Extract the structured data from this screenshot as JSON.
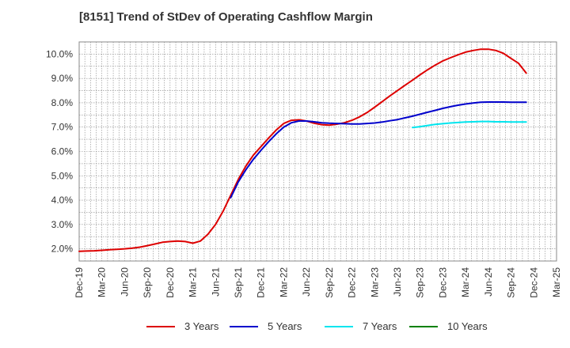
{
  "title": "[8151]  Trend of StDev of Operating Cashflow Margin",
  "chart_data": {
    "type": "line",
    "title": "[8151]  Trend of StDev of Operating Cashflow Margin",
    "xlabel": "",
    "ylabel": "",
    "x_ticks": [
      "Dec-19",
      "Mar-20",
      "Jun-20",
      "Sep-20",
      "Dec-20",
      "Mar-21",
      "Jun-21",
      "Sep-21",
      "Dec-21",
      "Mar-22",
      "Jun-22",
      "Sep-22",
      "Dec-22",
      "Mar-23",
      "Jun-23",
      "Sep-23",
      "Dec-23",
      "Mar-24",
      "Jun-24",
      "Sep-24",
      "Dec-24",
      "Mar-25"
    ],
    "y_ticks": [
      "2.0%",
      "3.0%",
      "4.0%",
      "5.0%",
      "6.0%",
      "7.0%",
      "8.0%",
      "9.0%",
      "10.0%"
    ],
    "ylim": [
      1.5,
      10.5
    ],
    "grid": true,
    "legend_position": "bottom",
    "series": [
      {
        "name": "3 Years",
        "color": "#dd0000",
        "points": [
          [
            "Dec-19",
            1.9
          ],
          [
            "Jan-20",
            1.91
          ],
          [
            "Feb-20",
            1.92
          ],
          [
            "Mar-20",
            1.94
          ],
          [
            "Apr-20",
            1.96
          ],
          [
            "May-20",
            1.98
          ],
          [
            "Jun-20",
            2.0
          ],
          [
            "Jul-20",
            2.03
          ],
          [
            "Aug-20",
            2.07
          ],
          [
            "Sep-20",
            2.13
          ],
          [
            "Oct-20",
            2.2
          ],
          [
            "Nov-20",
            2.27
          ],
          [
            "Dec-20",
            2.3
          ],
          [
            "Jan-21",
            2.32
          ],
          [
            "Feb-21",
            2.3
          ],
          [
            "Mar-21",
            2.23
          ],
          [
            "Apr-21",
            2.32
          ],
          [
            "May-21",
            2.6
          ],
          [
            "Jun-21",
            3.0
          ],
          [
            "Jul-21",
            3.55
          ],
          [
            "Aug-21",
            4.2
          ],
          [
            "Sep-21",
            4.85
          ],
          [
            "Oct-21",
            5.4
          ],
          [
            "Nov-21",
            5.85
          ],
          [
            "Dec-21",
            6.2
          ],
          [
            "Jan-22",
            6.55
          ],
          [
            "Feb-22",
            6.88
          ],
          [
            "Mar-22",
            7.15
          ],
          [
            "Apr-22",
            7.28
          ],
          [
            "May-22",
            7.3
          ],
          [
            "Jun-22",
            7.25
          ],
          [
            "Jul-22",
            7.16
          ],
          [
            "Aug-22",
            7.1
          ],
          [
            "Sep-22",
            7.08
          ],
          [
            "Oct-22",
            7.12
          ],
          [
            "Nov-22",
            7.18
          ],
          [
            "Dec-22",
            7.28
          ],
          [
            "Jan-23",
            7.42
          ],
          [
            "Feb-23",
            7.6
          ],
          [
            "Mar-23",
            7.82
          ],
          [
            "Apr-23",
            8.05
          ],
          [
            "May-23",
            8.28
          ],
          [
            "Jun-23",
            8.5
          ],
          [
            "Jul-23",
            8.72
          ],
          [
            "Aug-23",
            8.93
          ],
          [
            "Sep-23",
            9.15
          ],
          [
            "Oct-23",
            9.36
          ],
          [
            "Nov-23",
            9.55
          ],
          [
            "Dec-23",
            9.72
          ],
          [
            "Jan-24",
            9.85
          ],
          [
            "Feb-24",
            9.97
          ],
          [
            "Mar-24",
            10.08
          ],
          [
            "Apr-24",
            10.15
          ],
          [
            "May-24",
            10.2
          ],
          [
            "Jun-24",
            10.2
          ],
          [
            "Jul-24",
            10.15
          ],
          [
            "Aug-24",
            10.03
          ],
          [
            "Sep-24",
            9.82
          ],
          [
            "Oct-24",
            9.62
          ],
          [
            "Nov-24",
            9.22
          ]
        ]
      },
      {
        "name": "5 Years",
        "color": "#0000cc",
        "points": [
          [
            "Aug-21",
            4.1
          ],
          [
            "Sep-21",
            4.75
          ],
          [
            "Oct-21",
            5.25
          ],
          [
            "Nov-21",
            5.68
          ],
          [
            "Dec-21",
            6.05
          ],
          [
            "Jan-22",
            6.4
          ],
          [
            "Feb-22",
            6.72
          ],
          [
            "Mar-22",
            7.0
          ],
          [
            "Apr-22",
            7.18
          ],
          [
            "May-22",
            7.25
          ],
          [
            "Jun-22",
            7.25
          ],
          [
            "Jul-22",
            7.22
          ],
          [
            "Aug-22",
            7.18
          ],
          [
            "Sep-22",
            7.16
          ],
          [
            "Oct-22",
            7.15
          ],
          [
            "Nov-22",
            7.14
          ],
          [
            "Dec-22",
            7.13
          ],
          [
            "Jan-23",
            7.13
          ],
          [
            "Feb-23",
            7.15
          ],
          [
            "Mar-23",
            7.17
          ],
          [
            "Apr-23",
            7.21
          ],
          [
            "May-23",
            7.26
          ],
          [
            "Jun-23",
            7.31
          ],
          [
            "Jul-23",
            7.38
          ],
          [
            "Aug-23",
            7.45
          ],
          [
            "Sep-23",
            7.53
          ],
          [
            "Oct-23",
            7.61
          ],
          [
            "Nov-23",
            7.69
          ],
          [
            "Dec-23",
            7.77
          ],
          [
            "Jan-24",
            7.84
          ],
          [
            "Feb-24",
            7.9
          ],
          [
            "Mar-24",
            7.95
          ],
          [
            "Apr-24",
            7.99
          ],
          [
            "May-24",
            8.02
          ],
          [
            "Jun-24",
            8.03
          ],
          [
            "Jul-24",
            8.03
          ],
          [
            "Aug-24",
            8.03
          ],
          [
            "Sep-24",
            8.02
          ],
          [
            "Oct-24",
            8.02
          ],
          [
            "Nov-24",
            8.02
          ]
        ]
      },
      {
        "name": "7 Years",
        "color": "#00e5ee",
        "points": [
          [
            "Aug-23",
            6.98
          ],
          [
            "Sep-23",
            7.02
          ],
          [
            "Oct-23",
            7.07
          ],
          [
            "Nov-23",
            7.11
          ],
          [
            "Dec-23",
            7.14
          ],
          [
            "Jan-24",
            7.17
          ],
          [
            "Feb-24",
            7.19
          ],
          [
            "Mar-24",
            7.21
          ],
          [
            "Apr-24",
            7.22
          ],
          [
            "May-24",
            7.23
          ],
          [
            "Jun-24",
            7.23
          ],
          [
            "Jul-24",
            7.22
          ],
          [
            "Aug-24",
            7.22
          ],
          [
            "Sep-24",
            7.21
          ],
          [
            "Oct-24",
            7.21
          ],
          [
            "Nov-24",
            7.21
          ]
        ]
      },
      {
        "name": "10 Years",
        "color": "#008000",
        "points": []
      }
    ]
  }
}
